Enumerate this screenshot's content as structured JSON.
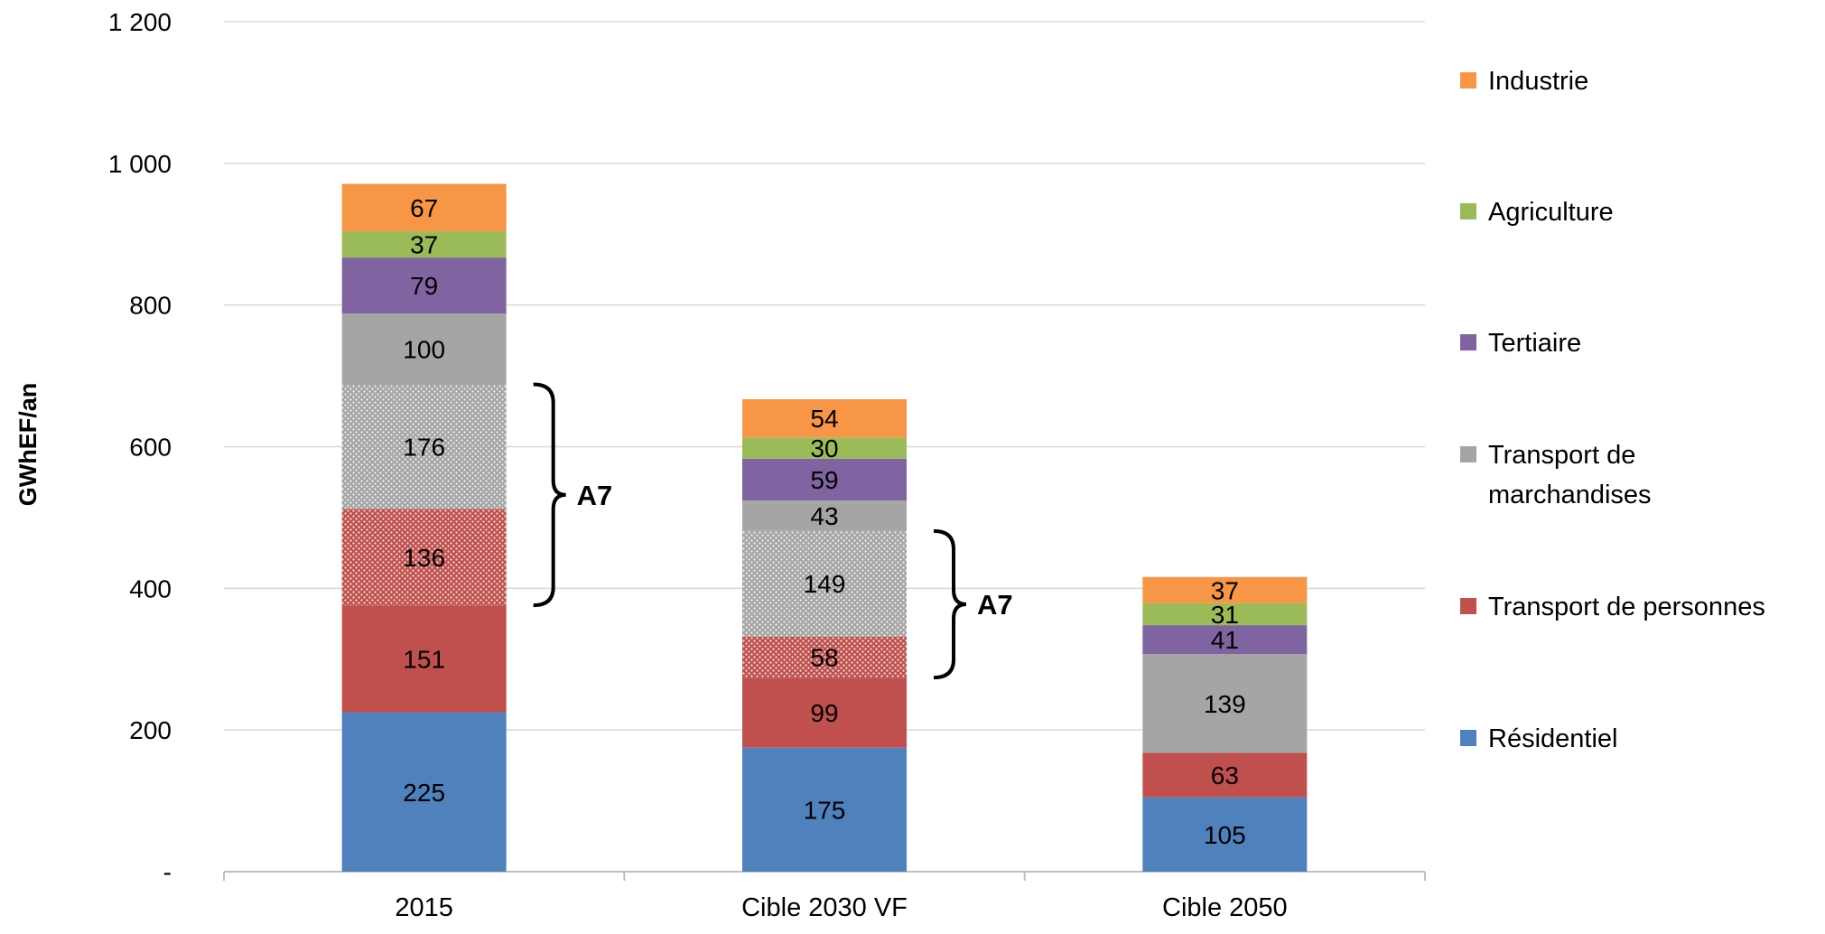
{
  "chart_data": {
    "type": "bar",
    "stacked": true,
    "ylabel": "GWhEF/an",
    "xlabel": "",
    "ylim": [
      0,
      1200
    ],
    "y_ticks": [
      {
        "value": 0,
        "label": "-"
      },
      {
        "value": 200,
        "label": "200"
      },
      {
        "value": 400,
        "label": "400"
      },
      {
        "value": 600,
        "label": "600"
      },
      {
        "value": 800,
        "label": "800"
      },
      {
        "value": 1000,
        "label": "1 000"
      },
      {
        "value": 1200,
        "label": "1 200"
      }
    ],
    "grid": true,
    "legend_position": "right",
    "categories": [
      "2015",
      "Cible 2030 VF",
      "Cible 2050"
    ],
    "series": [
      {
        "name": "Résidentiel",
        "color": "#4F81BD",
        "values": [
          225,
          175,
          105
        ]
      },
      {
        "name": "Transport de personnes",
        "color": "#C0504D",
        "values": [
          151,
          99,
          63
        ]
      },
      {
        "name": "Transport de personnes",
        "color": "#C0504D",
        "pattern": "dotted",
        "in_legend": false,
        "values": [
          136,
          58,
          0
        ]
      },
      {
        "name": "Transport de marchandises",
        "color": "#A5A5A5",
        "pattern": "dotted",
        "in_legend": false,
        "values": [
          176,
          149,
          0
        ]
      },
      {
        "name": "Transport de marchandises",
        "color": "#A5A5A5",
        "values": [
          100,
          43,
          139
        ]
      },
      {
        "name": "Tertiaire",
        "color": "#8064A2",
        "values": [
          79,
          59,
          41
        ]
      },
      {
        "name": "Agriculture",
        "color": "#9BBB59",
        "values": [
          37,
          30,
          31
        ]
      },
      {
        "name": "Industrie",
        "color": "#F79646",
        "values": [
          67,
          54,
          37
        ]
      }
    ],
    "legend": [
      {
        "label": "Industrie",
        "color": "#F79646"
      },
      {
        "label": "Agriculture",
        "color": "#9BBB59"
      },
      {
        "label": "Tertiaire",
        "color": "#8064A2"
      },
      {
        "label": "Transport de marchandises",
        "lines": [
          "Transport de",
          "marchandises"
        ],
        "color": "#A5A5A5"
      },
      {
        "label": "Transport de personnes",
        "color": "#C0504D"
      },
      {
        "label": "Résidentiel",
        "color": "#4F81BD"
      }
    ],
    "annotations": [
      {
        "label": "A7",
        "category": "2015",
        "from": 376,
        "to": 688
      },
      {
        "label": "A7",
        "category": "Cible 2030 VF",
        "from": 274,
        "to": 481
      }
    ]
  }
}
